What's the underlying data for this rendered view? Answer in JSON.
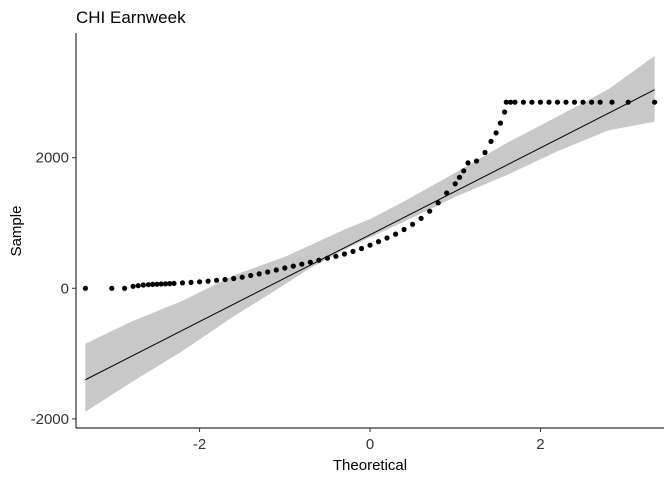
{
  "chart_data": {
    "type": "scatter",
    "title": "CHI Earnweek",
    "xlabel": "Theoretical",
    "ylabel": "Sample",
    "xlim": [
      -3.45,
      3.45
    ],
    "ylim": [
      -2140,
      3910
    ],
    "x_ticks": [
      -2,
      0,
      2
    ],
    "x_tick_labels": [
      "-2",
      "0",
      "2"
    ],
    "y_ticks": [
      -2000,
      0,
      2000
    ],
    "y_tick_labels": [
      "-2000",
      "0",
      "2000"
    ],
    "grid": false,
    "legend": "none",
    "colors": {
      "points": "#000000",
      "line": "#000000",
      "band": "#c8c8c8"
    },
    "qq_line": {
      "intercept": 820,
      "slope": 665
    },
    "confidence_band": {
      "x": [
        -3.34,
        -2.8,
        -2.2,
        -1.6,
        -1.0,
        -0.7,
        -0.3,
        0.0,
        0.4,
        1.0,
        1.6,
        2.2,
        2.8,
        3.34
      ],
      "lower": [
        -1890,
        -1440,
        -960,
        -430,
        60,
        310,
        590,
        780,
        1020,
        1400,
        1730,
        2100,
        2420,
        2550
      ],
      "upper": [
        -850,
        -510,
        -190,
        200,
        480,
        660,
        900,
        1060,
        1330,
        1770,
        2220,
        2630,
        3050,
        3560
      ]
    },
    "sample_points": {
      "x": [
        -3.34,
        -3.03,
        -2.88,
        -2.78,
        -2.72,
        -2.66,
        -2.6,
        -2.55,
        -2.5,
        -2.45,
        -2.4,
        -2.35,
        -2.3,
        -2.2,
        -2.1,
        -2.0,
        -1.9,
        -1.8,
        -1.7,
        -1.6,
        -1.5,
        -1.4,
        -1.3,
        -1.2,
        -1.1,
        -1.0,
        -0.9,
        -0.8,
        -0.7,
        -0.6,
        -0.5,
        -0.4,
        -0.3,
        -0.2,
        -0.1,
        0.0,
        0.1,
        0.2,
        0.3,
        0.4,
        0.5,
        0.6,
        0.7,
        0.8,
        0.9,
        1.0,
        1.05,
        1.1,
        1.15,
        1.25,
        1.35,
        1.42,
        1.48,
        1.53,
        1.58,
        1.6,
        1.65,
        1.7,
        1.8,
        1.9,
        2.0,
        2.1,
        2.2,
        2.3,
        2.4,
        2.5,
        2.6,
        2.7,
        2.84,
        3.03,
        3.34
      ],
      "y": [
        0,
        0,
        0,
        30,
        40,
        50,
        55,
        60,
        62,
        65,
        68,
        72,
        75,
        82,
        90,
        100,
        110,
        122,
        135,
        150,
        170,
        195,
        220,
        250,
        280,
        310,
        340,
        370,
        400,
        430,
        460,
        490,
        525,
        565,
        610,
        660,
        715,
        770,
        830,
        900,
        980,
        1070,
        1180,
        1310,
        1460,
        1600,
        1700,
        1800,
        1920,
        1950,
        2080,
        2250,
        2380,
        2530,
        2700,
        2850,
        2850,
        2850,
        2850,
        2850,
        2850,
        2850,
        2850,
        2850,
        2850,
        2850,
        2850,
        2850,
        2850,
        2850,
        2850
      ]
    }
  }
}
